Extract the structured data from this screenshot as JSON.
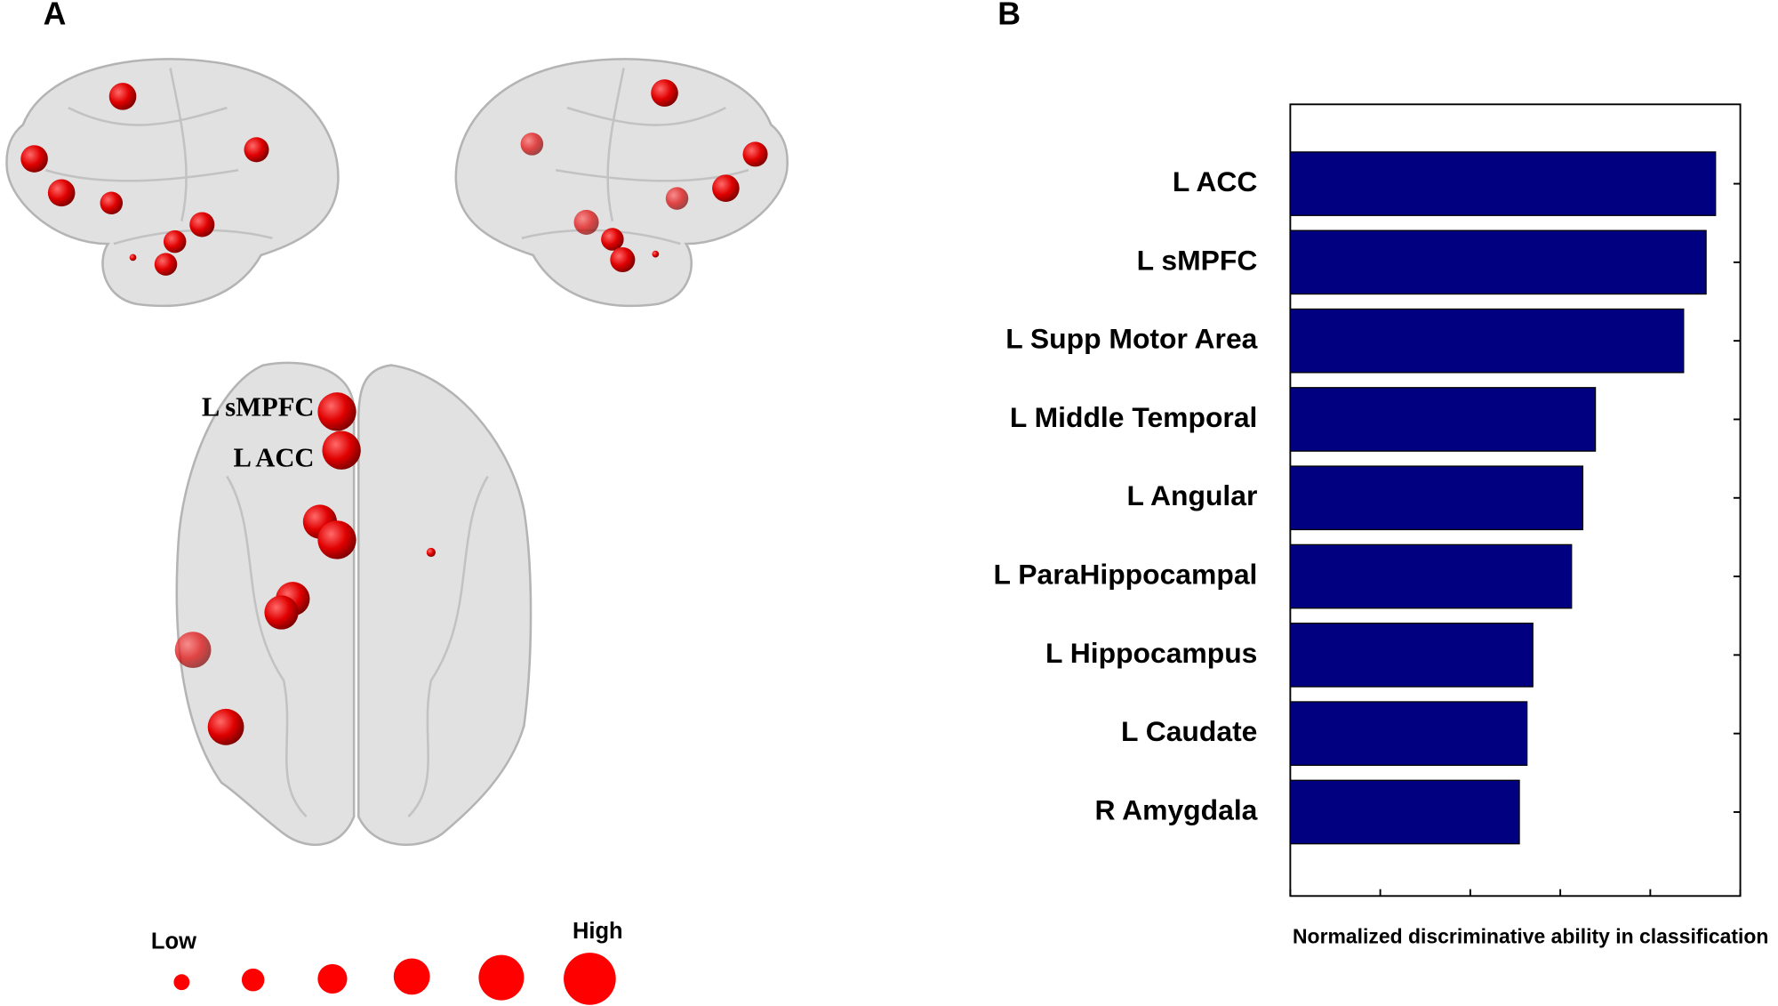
{
  "panel_labels": [
    "A",
    "B"
  ],
  "brain_labels": [
    "L sMPFC",
    "L ACC"
  ],
  "legend": {
    "low": "Low",
    "high": "High"
  },
  "chart_data": {
    "type": "barh",
    "xlabel": "Normalized discriminative ability in classification",
    "categories": [
      "L ACC",
      "L sMPFC",
      "L Supp Motor Area",
      "L Middle Temporal",
      "L Angular",
      "L ParaHippocampal",
      "L Hippocampus",
      "L Caudate",
      "R Amygdala"
    ],
    "values": [
      0.945,
      0.924,
      0.874,
      0.678,
      0.65,
      0.625,
      0.539,
      0.526,
      0.509
    ],
    "color": "#000080",
    "xlim": [
      0,
      1
    ],
    "xticks": [
      0,
      0.2,
      0.4,
      0.6,
      0.8,
      1
    ]
  }
}
